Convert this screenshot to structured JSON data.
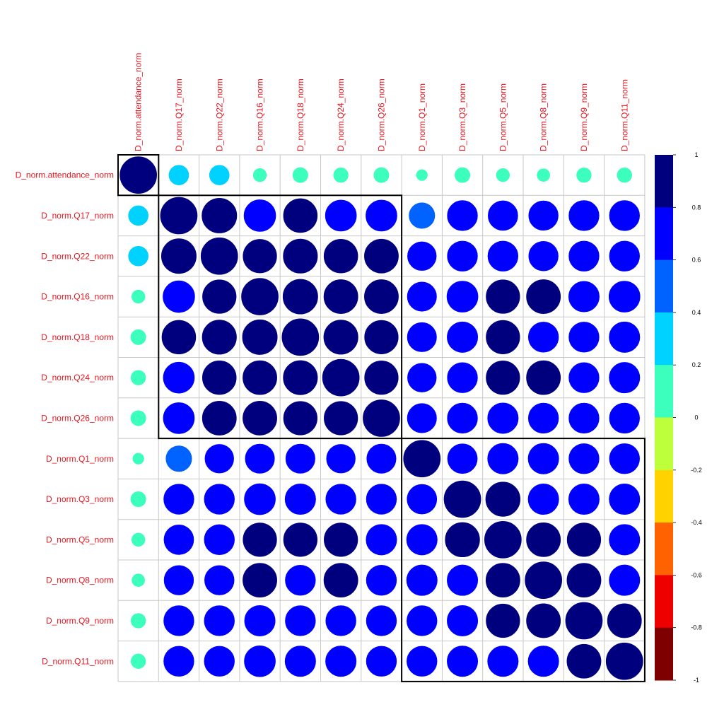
{
  "chart_data": {
    "type": "heatmap",
    "title": "",
    "variables": [
      "D_norm.attendance_norm",
      "D_norm.Q17_norm",
      "D_norm.Q22_norm",
      "D_norm.Q16_norm",
      "D_norm.Q18_norm",
      "D_norm.Q24_norm",
      "D_norm.Q26_norm",
      "D_norm.Q1_norm",
      "D_norm.Q3_norm",
      "D_norm.Q5_norm",
      "D_norm.Q8_norm",
      "D_norm.Q9_norm",
      "D_norm.Q11_norm"
    ],
    "matrix": [
      [
        1.0,
        0.3,
        0.3,
        0.14,
        0.18,
        0.17,
        0.18,
        0.1,
        0.18,
        0.14,
        0.13,
        0.17,
        0.17
      ],
      [
        0.3,
        1.0,
        0.9,
        0.75,
        0.85,
        0.72,
        0.72,
        0.5,
        0.68,
        0.66,
        0.65,
        0.68,
        0.68
      ],
      [
        0.3,
        0.9,
        1.0,
        0.84,
        0.87,
        0.85,
        0.86,
        0.62,
        0.68,
        0.68,
        0.65,
        0.68,
        0.68
      ],
      [
        0.14,
        0.75,
        0.84,
        1.0,
        0.9,
        0.86,
        0.86,
        0.64,
        0.72,
        0.84,
        0.86,
        0.7,
        0.72
      ],
      [
        0.18,
        0.85,
        0.87,
        0.9,
        1.0,
        0.87,
        0.84,
        0.64,
        0.7,
        0.84,
        0.68,
        0.68,
        0.7
      ],
      [
        0.17,
        0.72,
        0.85,
        0.86,
        0.87,
        1.0,
        0.84,
        0.62,
        0.68,
        0.84,
        0.86,
        0.68,
        0.7
      ],
      [
        0.18,
        0.72,
        0.86,
        0.86,
        0.84,
        0.84,
        1.0,
        0.64,
        0.68,
        0.7,
        0.68,
        0.68,
        0.68
      ],
      [
        0.1,
        0.5,
        0.62,
        0.64,
        0.64,
        0.62,
        0.64,
        1.0,
        0.66,
        0.7,
        0.7,
        0.68,
        0.68
      ],
      [
        0.18,
        0.68,
        0.68,
        0.72,
        0.7,
        0.68,
        0.68,
        0.66,
        1.0,
        0.88,
        0.7,
        0.7,
        0.7
      ],
      [
        0.14,
        0.66,
        0.68,
        0.84,
        0.84,
        0.84,
        0.7,
        0.7,
        0.88,
        1.0,
        0.86,
        0.84,
        0.7
      ],
      [
        0.13,
        0.65,
        0.65,
        0.86,
        0.68,
        0.86,
        0.68,
        0.7,
        0.7,
        0.86,
        1.0,
        0.86,
        0.7
      ],
      [
        0.17,
        0.68,
        0.68,
        0.7,
        0.68,
        0.68,
        0.68,
        0.68,
        0.7,
        0.84,
        0.86,
        1.0,
        0.86
      ],
      [
        0.17,
        0.68,
        0.68,
        0.72,
        0.7,
        0.7,
        0.68,
        0.68,
        0.7,
        0.7,
        0.7,
        0.86,
        1.0
      ]
    ],
    "clusters": [
      [
        0,
        0
      ],
      [
        1,
        6
      ],
      [
        7,
        12
      ]
    ],
    "colorbar": {
      "range": [
        -1,
        1
      ],
      "ticks": [
        "1",
        "0.8",
        "0.6",
        "0.4",
        "0.2",
        "0",
        "-0.2",
        "-0.4",
        "-0.6",
        "-0.8",
        "-1"
      ],
      "colors_top_to_bottom": [
        "#00007f",
        "#0000ff",
        "#0062ff",
        "#00d2ff",
        "#3cffbe",
        "#beff3c",
        "#ffd200",
        "#ff6200",
        "#ef0000",
        "#7f0000"
      ]
    },
    "grid": true,
    "label_color": "#e8141e"
  }
}
